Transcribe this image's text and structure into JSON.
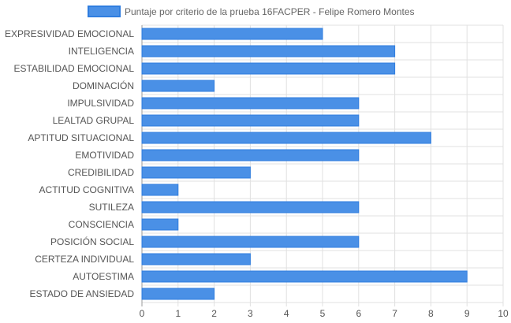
{
  "chart_data": {
    "type": "bar",
    "orientation": "horizontal",
    "categories": [
      "EXPRESIVIDAD EMOCIONAL",
      "INTELIGENCIA",
      "ESTABILIDAD EMOCIONAL",
      "DOMINACIÓN",
      "IMPULSIVIDAD",
      "LEALTAD GRUPAL",
      "APTITUD SITUACIONAL",
      "EMOTIVIDAD",
      "CREDIBILIDAD",
      "ACTITUD COGNITIVA",
      "SUTILEZA",
      "CONSCIENCIA",
      "POSICIÓN SOCIAL",
      "CERTEZA INDIVIDUAL",
      "AUTOESTIMA",
      "ESTADO DE ANSIEDAD"
    ],
    "series": [
      {
        "name": "Puntaje por criterio de la prueba 16FACPER - Felipe Romero Montes",
        "values": [
          5,
          7,
          7,
          2,
          6,
          6,
          8,
          6,
          3,
          1,
          6,
          1,
          6,
          3,
          9,
          2
        ]
      }
    ],
    "xlim": [
      0,
      10
    ],
    "x_ticks": [
      "0",
      "1",
      "2",
      "3",
      "4",
      "5",
      "6",
      "7",
      "8",
      "9",
      "10"
    ],
    "grid": true,
    "legend_position": "top-center",
    "colors": {
      "bar_fill": "#4a90e6",
      "bar_stroke": "#2f7ddf",
      "grid": "#e0e0e0",
      "axis": "#9a9a9a"
    }
  }
}
